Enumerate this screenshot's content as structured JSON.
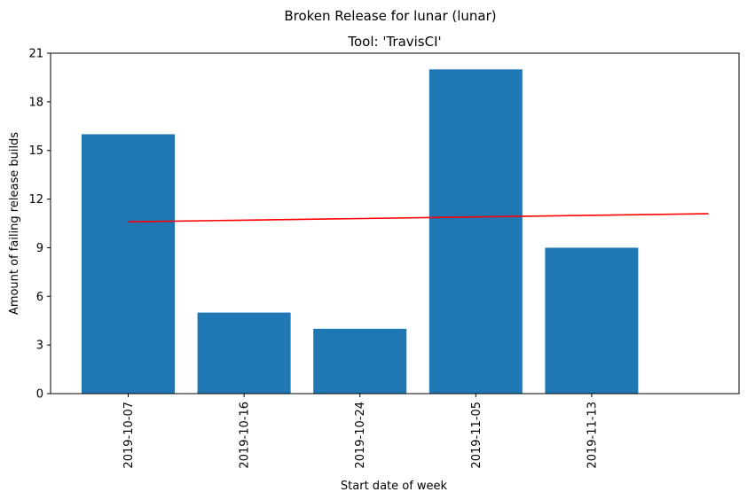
{
  "chart_data": {
    "type": "bar",
    "suptitle": "Broken Release for lunar (lunar)",
    "title": "Tool: 'TravisCI'",
    "xlabel": "Start date of week",
    "ylabel": "Amount of failing release builds",
    "categories": [
      "2019-10-07",
      "2019-10-16",
      "2019-10-24",
      "2019-11-05",
      "2019-11-13"
    ],
    "values": [
      16,
      5,
      4,
      20,
      9
    ],
    "ylim": [
      0,
      21
    ],
    "yticks": [
      0,
      3,
      6,
      9,
      12,
      15,
      18,
      21
    ],
    "trend_line": {
      "start": 10.6,
      "end": 11.1,
      "span_categories": 6
    },
    "colors": {
      "bar": "#1f77b4",
      "trend": "#ff0000"
    },
    "grid": false,
    "legend": "none"
  }
}
